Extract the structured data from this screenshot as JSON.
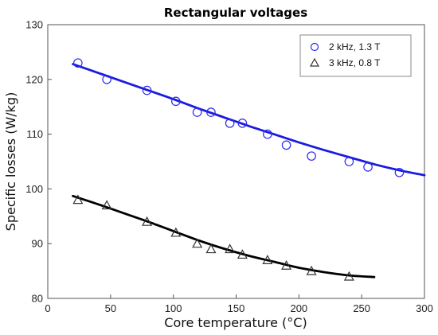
{
  "chart_data": {
    "type": "scatter",
    "title": "Rectangular voltages",
    "xlabel": "Core temperature (°C)",
    "ylabel": "Specific losses (W/kg)",
    "xlim": [
      0,
      300
    ],
    "ylim": [
      80,
      130
    ],
    "xticks": [
      0,
      50,
      100,
      150,
      200,
      250,
      300
    ],
    "yticks": [
      80,
      90,
      100,
      110,
      120,
      130
    ],
    "grid": false,
    "legend_position": "top-right",
    "series": [
      {
        "name": "2 kHz, 1.3 T",
        "marker": "circle",
        "color": "#2a2af0",
        "points": [
          [
            24,
            123
          ],
          [
            47,
            120
          ],
          [
            79,
            118
          ],
          [
            102,
            116
          ],
          [
            119,
            114
          ],
          [
            130,
            114
          ],
          [
            145,
            112
          ],
          [
            155,
            112
          ],
          [
            175,
            110
          ],
          [
            190,
            108
          ],
          [
            210,
            106
          ],
          [
            240,
            105
          ],
          [
            255,
            104
          ],
          [
            280,
            103
          ]
        ],
        "fit": {
          "color": "#1a1ae0",
          "points": [
            [
              20,
              122.8
            ],
            [
              40,
              121.2
            ],
            [
              60,
              119.6
            ],
            [
              80,
              118.0
            ],
            [
              100,
              116.4
            ],
            [
              120,
              114.7
            ],
            [
              140,
              113.1
            ],
            [
              160,
              111.5
            ],
            [
              180,
              110.0
            ],
            [
              200,
              108.5
            ],
            [
              220,
              107.1
            ],
            [
              240,
              105.8
            ],
            [
              260,
              104.5
            ],
            [
              280,
              103.4
            ],
            [
              300,
              102.5
            ]
          ]
        }
      },
      {
        "name": "3 kHz, 0.8 T",
        "marker": "triangle",
        "color": "#333333",
        "points": [
          [
            24,
            98
          ],
          [
            47,
            97
          ],
          [
            79,
            94
          ],
          [
            102,
            92
          ],
          [
            119,
            90
          ],
          [
            130,
            89
          ],
          [
            145,
            89
          ],
          [
            155,
            88
          ],
          [
            175,
            87
          ],
          [
            190,
            86
          ],
          [
            210,
            85
          ],
          [
            240,
            84
          ]
        ],
        "fit": {
          "color": "#000000",
          "points": [
            [
              20,
              98.7
            ],
            [
              40,
              97.2
            ],
            [
              60,
              95.6
            ],
            [
              80,
              94.0
            ],
            [
              100,
              92.3
            ],
            [
              120,
              90.6
            ],
            [
              140,
              89.1
            ],
            [
              160,
              87.8
            ],
            [
              180,
              86.7
            ],
            [
              200,
              85.6
            ],
            [
              220,
              84.8
            ],
            [
              240,
              84.2
            ],
            [
              260,
              83.9
            ]
          ]
        }
      }
    ]
  }
}
